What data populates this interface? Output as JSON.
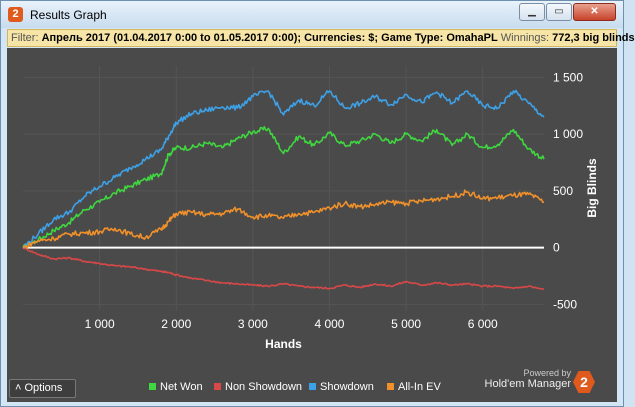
{
  "window": {
    "title": "Results Graph",
    "icon": "hm2-logo-icon",
    "controls": [
      "minimize",
      "maximize",
      "close"
    ]
  },
  "filter": {
    "label": "Filter:",
    "text": "Апрель 2017 (01.04.2017 0:00 to 01.05.2017 0:00); Currencies: $; Game Type: OmahaPL",
    "winnings_label": "Winnings:",
    "winnings_value": "772,3 big blinds"
  },
  "colors": {
    "net_won": "#3fd63f",
    "non_showdown": "#d84848",
    "showdown": "#3ea0e6",
    "all_in_ev": "#f0902a",
    "background": "#4a4a4a",
    "zero_line": "#ffffff"
  },
  "chart_data": {
    "type": "line",
    "xlabel": "Hands",
    "ylabel": "Big Blinds",
    "xlim": [
      0,
      6800
    ],
    "ylim": [
      -550,
      1600
    ],
    "x_ticks": [
      "1 000",
      "2 000",
      "3 000",
      "4 000",
      "5 000",
      "6 000"
    ],
    "y_ticks": [
      "1 500",
      "1 000",
      "500",
      "0",
      "-500"
    ],
    "x": [
      0,
      200,
      400,
      600,
      800,
      1000,
      1200,
      1400,
      1600,
      1800,
      1900,
      2000,
      2200,
      2400,
      2600,
      2800,
      3000,
      3200,
      3400,
      3600,
      3800,
      4000,
      4200,
      4400,
      4600,
      4800,
      5000,
      5200,
      5400,
      5600,
      5800,
      6000,
      6200,
      6400,
      6600,
      6800
    ],
    "series": [
      {
        "name": "Net Won",
        "values": [
          0,
          70,
          150,
          220,
          330,
          400,
          480,
          540,
          600,
          650,
          820,
          880,
          880,
          920,
          880,
          960,
          1020,
          1050,
          830,
          980,
          900,
          1010,
          900,
          940,
          1000,
          920,
          1000,
          940,
          1040,
          900,
          1000,
          880,
          910,
          1040,
          870,
          780
        ]
      },
      {
        "name": "Non Showdown",
        "values": [
          0,
          -60,
          -100,
          -90,
          -120,
          -140,
          -160,
          -170,
          -190,
          -210,
          -220,
          -240,
          -270,
          -290,
          -310,
          -320,
          -330,
          -340,
          -320,
          -340,
          -350,
          -360,
          -330,
          -350,
          -320,
          -340,
          -300,
          -330,
          -310,
          -330,
          -320,
          -340,
          -340,
          -360,
          -340,
          -370
        ]
      },
      {
        "name": "Showdown",
        "values": [
          0,
          120,
          250,
          310,
          450,
          540,
          620,
          700,
          780,
          860,
          980,
          1100,
          1180,
          1210,
          1240,
          1230,
          1330,
          1380,
          1170,
          1300,
          1250,
          1380,
          1230,
          1270,
          1330,
          1260,
          1350,
          1280,
          1370,
          1270,
          1380,
          1250,
          1230,
          1380,
          1270,
          1150
        ]
      },
      {
        "name": "All-In EV",
        "values": [
          0,
          60,
          80,
          120,
          130,
          140,
          170,
          120,
          90,
          160,
          230,
          300,
          310,
          290,
          300,
          340,
          270,
          280,
          260,
          300,
          310,
          350,
          390,
          360,
          380,
          400,
          390,
          410,
          430,
          450,
          490,
          430,
          440,
          460,
          470,
          400
        ]
      }
    ]
  },
  "footer": {
    "options_label": "Options",
    "powered_by": "Powered by",
    "brand": "Hold'em Manager",
    "brand_icon": "hm2-logo-icon"
  }
}
